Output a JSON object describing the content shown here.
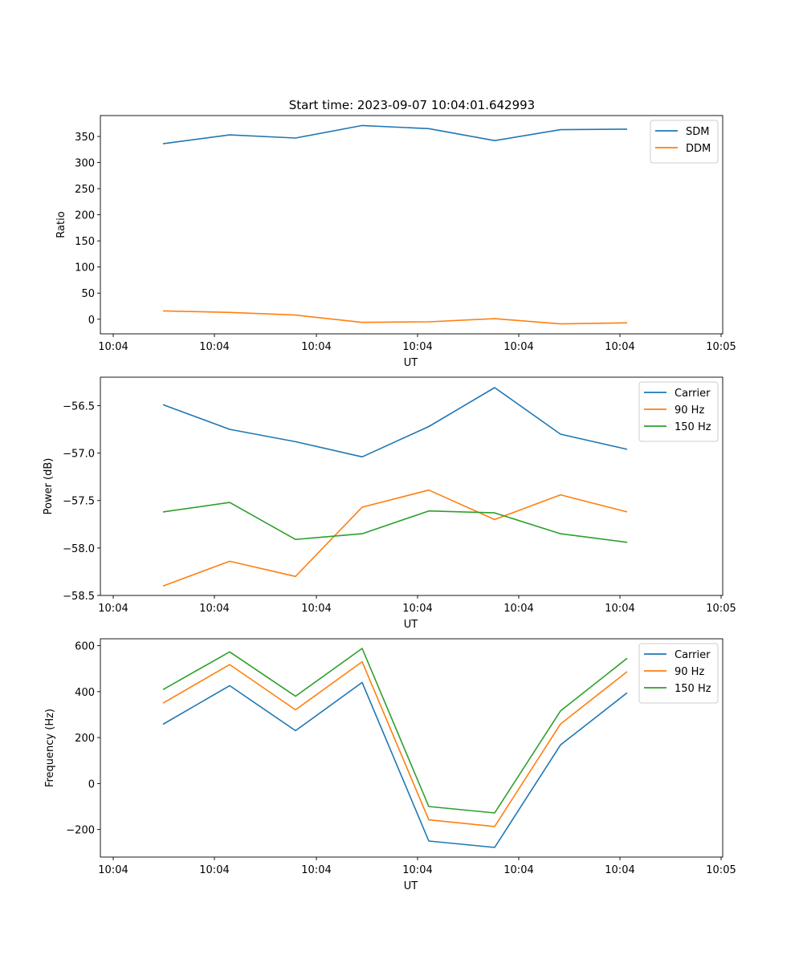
{
  "title": "Start time: 2023-09-07 10:04:01.642993",
  "colors": {
    "blue": "#1f77b4",
    "orange": "#ff7f0e",
    "green": "#2ca02c"
  },
  "chart_data": [
    {
      "type": "line",
      "xlabel": "UT",
      "ylabel": "Ratio",
      "xticks": [
        "10:04",
        "10:04",
        "10:04",
        "10:04",
        "10:04",
        "10:04",
        "10:05"
      ],
      "yticks": [
        0,
        50,
        100,
        150,
        200,
        250,
        300,
        350
      ],
      "ylim": [
        -28,
        390
      ],
      "legend": "top-right",
      "series": [
        {
          "name": "SDM",
          "color": "#1f77b4",
          "values": [
            336,
            353,
            347,
            371,
            365,
            342,
            363,
            364
          ]
        },
        {
          "name": "DDM",
          "color": "#ff7f0e",
          "values": [
            16,
            13,
            8,
            -6,
            -5,
            1,
            -9,
            -7
          ]
        }
      ]
    },
    {
      "type": "line",
      "xlabel": "UT",
      "ylabel": "Power (dB)",
      "xticks": [
        "10:04",
        "10:04",
        "10:04",
        "10:04",
        "10:04",
        "10:04",
        "10:05"
      ],
      "yticks": [
        -58.5,
        -58.0,
        -57.5,
        -57.0,
        -56.5
      ],
      "ylim": [
        -58.5,
        -56.2
      ],
      "legend": "top-right",
      "series": [
        {
          "name": "Carrier",
          "color": "#1f77b4",
          "values": [
            -56.49,
            -56.75,
            -56.88,
            -57.04,
            -56.72,
            -56.31,
            -56.8,
            -56.96
          ]
        },
        {
          "name": "90 Hz",
          "color": "#ff7f0e",
          "values": [
            -58.4,
            -58.14,
            -58.3,
            -57.57,
            -57.39,
            -57.7,
            -57.44,
            -57.62
          ]
        },
        {
          "name": "150 Hz",
          "color": "#2ca02c",
          "values": [
            -57.62,
            -57.52,
            -57.91,
            -57.85,
            -57.61,
            -57.63,
            -57.85,
            -57.94
          ]
        }
      ]
    },
    {
      "type": "line",
      "xlabel": "UT",
      "ylabel": "Frequency (Hz)",
      "xticks": [
        "10:04",
        "10:04",
        "10:04",
        "10:04",
        "10:04",
        "10:04",
        "10:05"
      ],
      "yticks": [
        -200,
        0,
        200,
        400,
        600
      ],
      "ylim": [
        -320,
        630
      ],
      "legend": "top-right",
      "series": [
        {
          "name": "Carrier",
          "color": "#1f77b4",
          "values": [
            258,
            426,
            230,
            440,
            -250,
            -278,
            168,
            395
          ]
        },
        {
          "name": "90 Hz",
          "color": "#ff7f0e",
          "values": [
            350,
            518,
            321,
            530,
            -158,
            -187,
            259,
            487
          ]
        },
        {
          "name": "150 Hz",
          "color": "#2ca02c",
          "values": [
            409,
            573,
            380,
            588,
            -100,
            -128,
            316,
            545
          ]
        }
      ]
    }
  ]
}
